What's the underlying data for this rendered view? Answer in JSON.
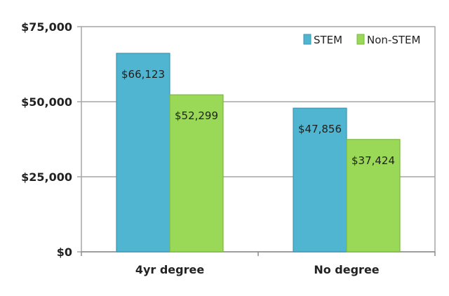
{
  "chart_data": {
    "type": "bar",
    "title": "",
    "xlabel": "",
    "ylabel": "",
    "categories": [
      "4yr degree",
      "No degree"
    ],
    "series": [
      {
        "name": "STEM",
        "values": [
          66123,
          47856
        ],
        "labels": [
          "$66,123",
          "$47,856"
        ],
        "color": "#4fb5d0"
      },
      {
        "name": "Non-STEM",
        "values": [
          52299,
          37424
        ],
        "labels": [
          "$52,299",
          "$37,424"
        ],
        "color": "#9ad957"
      }
    ],
    "ylim": [
      0,
      75000
    ],
    "yticks": [
      0,
      25000,
      50000,
      75000
    ],
    "ytick_labels": [
      "$0",
      "$25,000",
      "$50,000",
      "$75,000"
    ],
    "grid": true,
    "legend": "top-right"
  }
}
